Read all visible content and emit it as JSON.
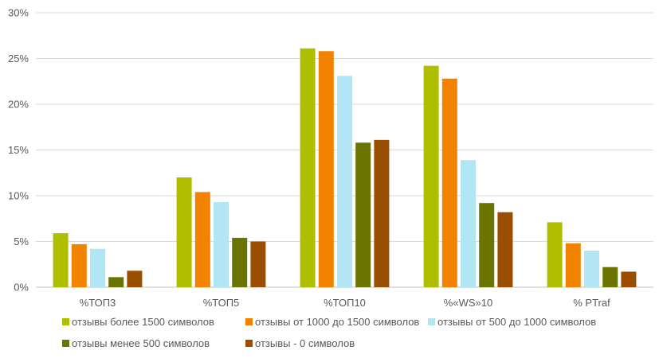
{
  "chart_data": {
    "type": "bar",
    "title": "",
    "xlabel": "",
    "ylabel": "",
    "categories": [
      "%ТОП3",
      "%ТОП5",
      "%ТОП10",
      "%«WS»10",
      "% PTraf"
    ],
    "ylim": [
      0,
      30
    ],
    "yticks": [
      "0%",
      "5%",
      "10%",
      "15%",
      "20%",
      "25%",
      "30%"
    ],
    "grid": true,
    "legend_position": "bottom",
    "series": [
      {
        "name": "отзывы более 1500 символов",
        "color": "#AFBF00",
        "values": [
          5.9,
          12.0,
          26.1,
          24.2,
          7.1
        ]
      },
      {
        "name": "отзывы от 1000  до 1500  символов",
        "color": "#F28300",
        "values": [
          4.7,
          10.4,
          25.8,
          22.8,
          4.8
        ]
      },
      {
        "name": "отзывы от 500  до 1000  символов",
        "color": "#B3E6F5",
        "values": [
          4.2,
          9.3,
          23.1,
          13.9,
          4.0
        ]
      },
      {
        "name": "отзывы менее 500 символов",
        "color": "#6B7400",
        "values": [
          1.1,
          5.4,
          15.8,
          9.2,
          2.2
        ]
      },
      {
        "name": "отзывы - 0 символов",
        "color": "#9A4E00",
        "values": [
          1.8,
          5.0,
          16.1,
          8.2,
          1.7
        ]
      }
    ]
  }
}
